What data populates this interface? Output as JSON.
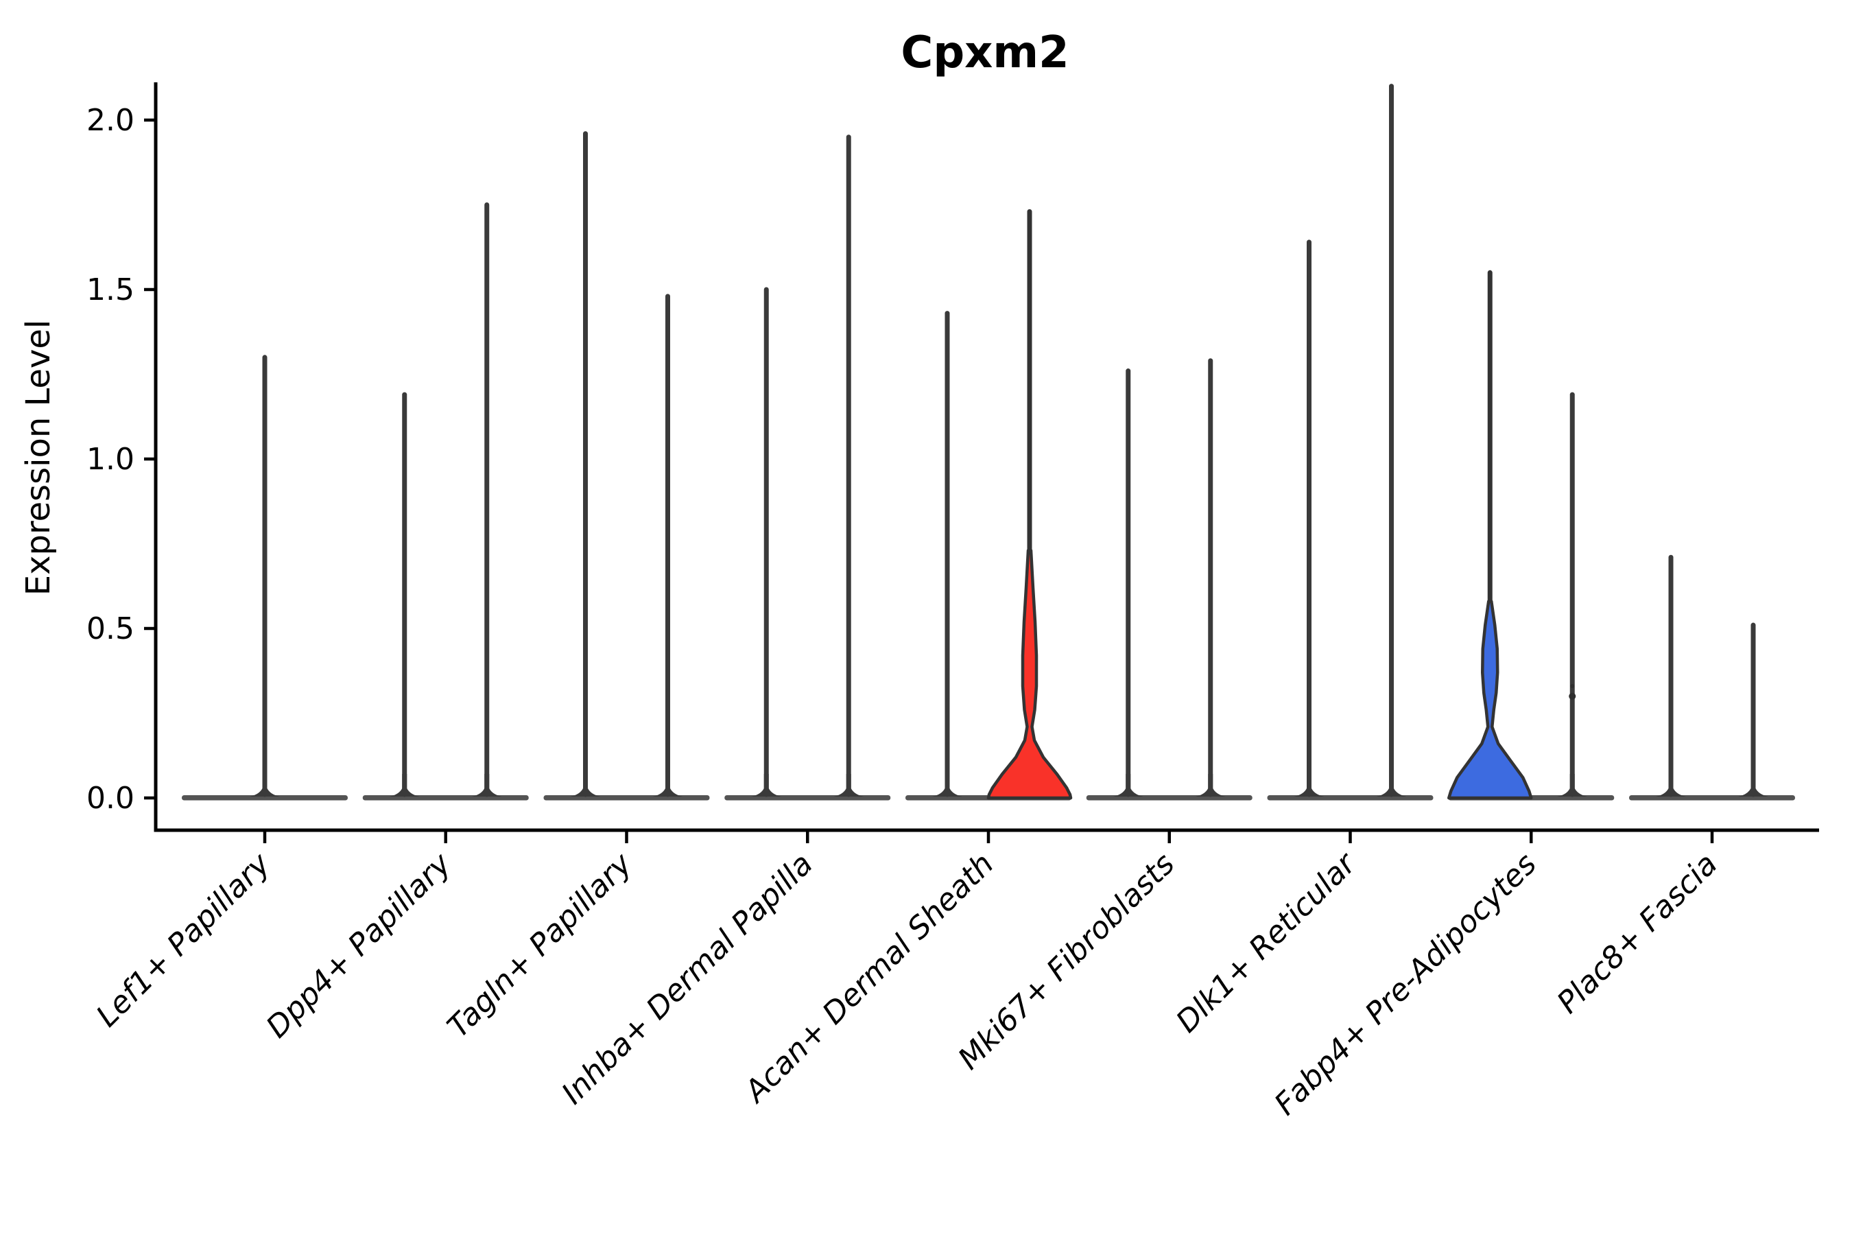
{
  "figure": {
    "title": "Cpxm2",
    "ylabel": "Expression Level"
  },
  "chart_data": {
    "type": "violin",
    "title": "Cpxm2",
    "xlabel": "",
    "ylabel": "Expression Level",
    "ylim": [
      -0.1,
      2.2
    ],
    "yticks": [
      0.0,
      0.5,
      1.0,
      1.5,
      2.0
    ],
    "ytick_labels": [
      "0.0",
      "0.5",
      "1.0",
      "1.5",
      "2.0"
    ],
    "grid": false,
    "legend": "none",
    "categories": [
      "Lef1+ Papillary",
      "Dpp4+ Papillary",
      "Tagln+ Papillary",
      "Inhba+ Dermal Papilla",
      "Acan+ Dermal Sheath",
      "Mki67+ Fibroblasts",
      "Dlk1+ Reticular",
      "Fabp4+ Pre-Adipocytes",
      "Plac8+ Fascia"
    ],
    "colors": {
      "highlight_red": "#F93229",
      "highlight_blue": "#3D6BE0",
      "outline": "#333333",
      "spike": "#3A3A3A",
      "baseline": "#454545",
      "axis": "#000000"
    },
    "violins": [
      {
        "category": "Lef1+ Papillary",
        "spikes": [
          {
            "side": "center",
            "max_expression": 1.3,
            "fill": "none"
          }
        ]
      },
      {
        "category": "Dpp4+ Papillary",
        "spikes": [
          {
            "side": "left",
            "max_expression": 1.19,
            "fill": "none"
          },
          {
            "side": "right",
            "max_expression": 1.75,
            "fill": "none"
          }
        ]
      },
      {
        "category": "Tagln+ Papillary",
        "spikes": [
          {
            "side": "left",
            "max_expression": 1.96,
            "fill": "none"
          },
          {
            "side": "right",
            "max_expression": 1.48,
            "fill": "none"
          }
        ]
      },
      {
        "category": "Inhba+ Dermal Papilla",
        "spikes": [
          {
            "side": "left",
            "max_expression": 1.5,
            "fill": "none"
          },
          {
            "side": "right",
            "max_expression": 1.95,
            "fill": "none"
          }
        ]
      },
      {
        "category": "Acan+ Dermal Sheath",
        "spikes": [
          {
            "side": "left",
            "max_expression": 1.43,
            "fill": "none"
          },
          {
            "side": "right",
            "max_expression": 1.73,
            "fill": "#F93229",
            "body_profile": [
              [
                0.73,
                2
              ],
              [
                0.62,
                5
              ],
              [
                0.52,
                8
              ],
              [
                0.42,
                10
              ],
              [
                0.33,
                10
              ],
              [
                0.26,
                7.5
              ],
              [
                0.21,
                3.5
              ],
              [
                0.17,
                7
              ],
              [
                0.12,
                20
              ],
              [
                0.07,
                40
              ],
              [
                0.03,
                54
              ],
              [
                0.01,
                59
              ],
              [
                0.0,
                60
              ]
            ]
          }
        ]
      },
      {
        "category": "Mki67+ Fibroblasts",
        "spikes": [
          {
            "side": "left",
            "max_expression": 1.26,
            "fill": "none"
          },
          {
            "side": "right",
            "max_expression": 1.29,
            "fill": "none"
          }
        ]
      },
      {
        "category": "Dlk1+ Reticular",
        "spikes": [
          {
            "side": "left",
            "max_expression": 1.64,
            "fill": "none"
          },
          {
            "side": "right",
            "max_expression": 2.1,
            "fill": "none"
          }
        ]
      },
      {
        "category": "Fabp4+ Pre-Adipocytes",
        "spikes": [
          {
            "side": "left",
            "max_expression": 1.55,
            "fill": "#3D6BE0",
            "body_profile": [
              [
                0.58,
                2
              ],
              [
                0.51,
                7
              ],
              [
                0.44,
                10.5
              ],
              [
                0.37,
                11
              ],
              [
                0.31,
                9
              ],
              [
                0.26,
                5.5
              ],
              [
                0.21,
                3
              ],
              [
                0.16,
                12
              ],
              [
                0.11,
                30
              ],
              [
                0.06,
                48
              ],
              [
                0.02,
                57
              ],
              [
                0.0,
                60
              ]
            ]
          },
          {
            "side": "right",
            "max_expression": 1.19,
            "fill": "none",
            "outlier_points": [
              {
                "expression": 0.33,
                "radius": 3
              },
              {
                "expression": 0.3,
                "radius": 5
              }
            ]
          }
        ]
      },
      {
        "category": "Plac8+ Fascia",
        "spikes": [
          {
            "side": "left",
            "max_expression": 0.71,
            "fill": "none"
          },
          {
            "side": "right",
            "max_expression": 0.51,
            "fill": "none"
          }
        ]
      }
    ]
  }
}
